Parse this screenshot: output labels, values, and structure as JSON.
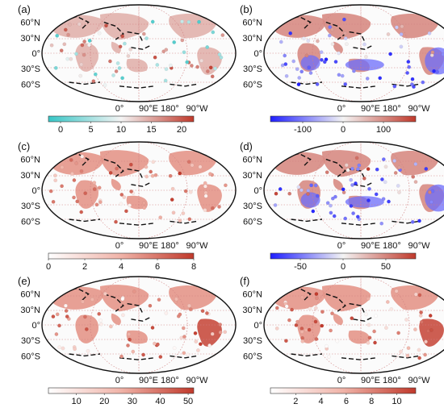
{
  "figure": {
    "lat_labels": [
      "60°N",
      "30°N",
      "0°",
      "30°S",
      "60°S"
    ],
    "lon_labels": [
      "0°",
      "90°E",
      "180°",
      "90°W"
    ],
    "panels": [
      {
        "label": "(a)",
        "scale": "sequential-red-cyan",
        "ticks": [
          "0",
          "5",
          "10",
          "15",
          "20"
        ],
        "range": [
          -2,
          22
        ],
        "colors": {
          "low": "#37c6c6",
          "mid": "#f4f4f4",
          "high": "#c0392b"
        }
      },
      {
        "label": "(b)",
        "scale": "diverging-blue-red",
        "ticks": [
          "-100",
          "0",
          "100"
        ],
        "range": [
          -180,
          180
        ],
        "colors": {
          "low": "#1f1fff",
          "mid": "#f4f4f4",
          "high": "#c0392b"
        }
      },
      {
        "label": "(c)",
        "scale": "sequential-white-red",
        "ticks": [
          "0",
          "2",
          "4",
          "6",
          "8"
        ],
        "range": [
          0,
          8
        ],
        "colors": {
          "low": "#ffffff",
          "mid": "#f0b3a8",
          "high": "#c0392b"
        }
      },
      {
        "label": "(d)",
        "scale": "diverging-blue-red",
        "ticks": [
          "-50",
          "0",
          "50"
        ],
        "range": [
          -85,
          85
        ],
        "colors": {
          "low": "#1f1fff",
          "mid": "#f4f4f4",
          "high": "#c0392b"
        }
      },
      {
        "label": "(e)",
        "scale": "sequential-white-red",
        "ticks": [
          "10",
          "20",
          "30",
          "40",
          "50"
        ],
        "range": [
          0,
          52
        ],
        "colors": {
          "low": "#ffffff",
          "mid": "#f0b3a8",
          "high": "#c0392b"
        }
      },
      {
        "label": "(f)",
        "scale": "sequential-white-red",
        "ticks": [
          "2",
          "4",
          "6",
          "8",
          "10"
        ],
        "range": [
          0,
          11.5
        ],
        "colors": {
          "low": "#ffffff",
          "mid": "#f0b3a8",
          "high": "#c0392b"
        }
      }
    ]
  }
}
